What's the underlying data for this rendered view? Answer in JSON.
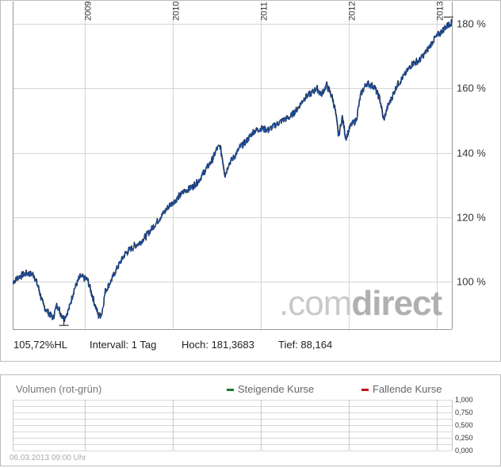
{
  "chart_data": [
    {
      "type": "line",
      "ylim": [
        83,
        185
      ],
      "y_tick_labels": [
        "100 %",
        "120 %",
        "140 %",
        "160 %",
        "180 %"
      ],
      "y_ticks": [
        100,
        120,
        140,
        160,
        180
      ],
      "year_labels": [
        "2009",
        "2010",
        "2011",
        "2012",
        "2013"
      ],
      "xlim": [
        "2008-03-06",
        "2013-03-06"
      ],
      "grid": true,
      "series": [
        {
          "points": [
            [
              "2008-03-06",
              99.8
            ],
            [
              "2008-04-01",
              101.5
            ],
            [
              "2008-05-01",
              102.6
            ],
            [
              "2008-06-01",
              102.0
            ],
            [
              "2008-06-20",
              98.0
            ],
            [
              "2008-07-10",
              92.5
            ],
            [
              "2008-08-01",
              90.2
            ],
            [
              "2008-08-20",
              88.6
            ],
            [
              "2008-09-05",
              93.0
            ],
            [
              "2008-09-20",
              90.0
            ],
            [
              "2008-10-05",
              88.5
            ],
            [
              "2008-10-25",
              91.5
            ],
            [
              "2008-11-15",
              97.5
            ],
            [
              "2008-12-10",
              101.5
            ],
            [
              "2009-01-10",
              100.5
            ],
            [
              "2009-02-05",
              94.0
            ],
            [
              "2009-02-25",
              89.2
            ],
            [
              "2009-03-10",
              90.0
            ],
            [
              "2009-03-25",
              97.0
            ],
            [
              "2009-04-20",
              100.5
            ],
            [
              "2009-05-15",
              104.5
            ],
            [
              "2009-06-15",
              108.5
            ],
            [
              "2009-07-15",
              110.5
            ],
            [
              "2009-08-15",
              112.0
            ],
            [
              "2009-09-15",
              114.5
            ],
            [
              "2009-10-15",
              117.5
            ],
            [
              "2009-11-15",
              120.5
            ],
            [
              "2009-12-15",
              123.5
            ],
            [
              "2010-01-15",
              125.5
            ],
            [
              "2010-02-15",
              128.0
            ],
            [
              "2010-03-15",
              129.0
            ],
            [
              "2010-04-15",
              131.0
            ],
            [
              "2010-05-15",
              134.5
            ],
            [
              "2010-06-15",
              138.0
            ],
            [
              "2010-07-01",
              141.0
            ],
            [
              "2010-07-15",
              142.0
            ],
            [
              "2010-07-25",
              138.0
            ],
            [
              "2010-08-05",
              133.0
            ],
            [
              "2010-08-20",
              136.5
            ],
            [
              "2010-09-10",
              138.5
            ],
            [
              "2010-10-05",
              141.5
            ],
            [
              "2010-11-01",
              143.5
            ],
            [
              "2010-12-01",
              146.5
            ],
            [
              "2011-01-01",
              147.5
            ],
            [
              "2011-02-01",
              147.0
            ],
            [
              "2011-03-01",
              148.5
            ],
            [
              "2011-04-01",
              150.0
            ],
            [
              "2011-05-01",
              151.0
            ],
            [
              "2011-06-01",
              153.5
            ],
            [
              "2011-07-01",
              157.0
            ],
            [
              "2011-08-01",
              158.5
            ],
            [
              "2011-08-20",
              160.0
            ],
            [
              "2011-09-10",
              158.0
            ],
            [
              "2011-10-01",
              161.0
            ],
            [
              "2011-10-25",
              157.0
            ],
            [
              "2011-11-05",
              153.5
            ],
            [
              "2011-11-20",
              145.0
            ],
            [
              "2011-12-05",
              151.0
            ],
            [
              "2011-12-20",
              144.5
            ],
            [
              "2012-01-10",
              148.5
            ],
            [
              "2012-02-01",
              150.0
            ],
            [
              "2012-02-20",
              158.0
            ],
            [
              "2012-03-15",
              161.5
            ],
            [
              "2012-04-15",
              160.5
            ],
            [
              "2012-05-10",
              156.5
            ],
            [
              "2012-05-25",
              150.0
            ],
            [
              "2012-06-10",
              154.0
            ],
            [
              "2012-07-01",
              157.5
            ],
            [
              "2012-07-20",
              161.0
            ],
            [
              "2012-08-20",
              164.0
            ],
            [
              "2012-09-20",
              167.5
            ],
            [
              "2012-10-20",
              168.5
            ],
            [
              "2012-11-20",
              171.5
            ],
            [
              "2012-12-20",
              175.0
            ],
            [
              "2013-01-20",
              177.5
            ],
            [
              "2013-02-15",
              179.5
            ],
            [
              "2013-03-06",
              180.5
            ]
          ]
        }
      ],
      "stats": {
        "current": "105,72%HL",
        "interval": "Intervall: 1 Tag",
        "high": "Hoch: 181,3683",
        "low": "Tief: 88,164"
      },
      "watermark": {
        "light": ".com",
        "dark": "direct"
      }
    },
    {
      "type": "bar",
      "title": "Volumen (rot-grün)",
      "ylim": [
        0,
        1
      ],
      "y_tick_labels": [
        "1,000",
        "0,750",
        "0,500",
        "0,250",
        "0,000"
      ],
      "y_ticks": [
        1,
        0.75,
        0.5,
        0.25,
        0
      ],
      "legend": [
        {
          "label": "Steigende Kurse",
          "color": "#1a7a2e"
        },
        {
          "label": "Fallende Kurse",
          "color": "#c0151b"
        }
      ],
      "values": [],
      "timestamp": "06.03.2013 09:00 Uhr"
    }
  ],
  "colors": {
    "line": "#1f4e9e",
    "grid": "#d4d4d4",
    "axis": "#999999"
  }
}
